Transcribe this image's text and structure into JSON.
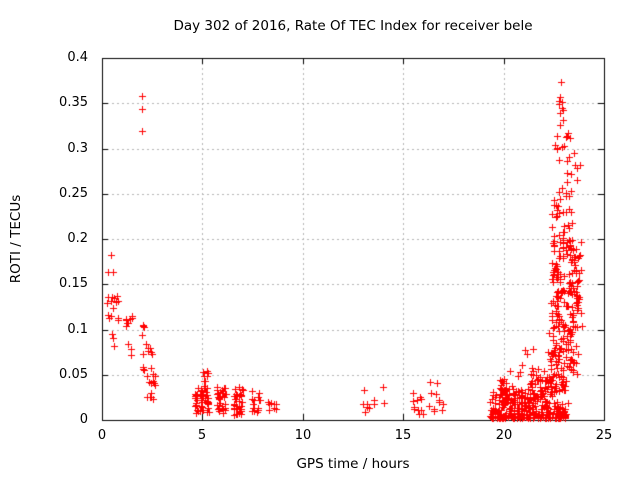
{
  "figure": {
    "background": "#ffffff",
    "border_color": "#000000"
  },
  "chart_data": {
    "type": "scatter",
    "title": "Day 302 of 2016, Rate Of TEC Index for receiver bele",
    "xlabel": "GPS time / hours",
    "ylabel": "ROTI / TECUs",
    "xlim": [
      0,
      25
    ],
    "ylim": [
      0,
      0.4
    ],
    "xticks": {
      "values": [
        0,
        5,
        10,
        15,
        20,
        25
      ],
      "labels": [
        "0",
        "5",
        "10",
        "15",
        "20",
        "25"
      ]
    },
    "yticks": {
      "values": [
        0,
        0.05,
        0.1,
        0.15,
        0.2,
        0.25,
        0.3,
        0.35,
        0.4
      ],
      "labels": [
        "0",
        "0.05",
        "0.1",
        "0.15",
        "0.2",
        "0.25",
        "0.3",
        "0.35",
        "0.4"
      ]
    },
    "grid": true,
    "grid_color": "#b4b4b4",
    "legend": "none",
    "series_name": "ROTI",
    "marker": {
      "shape": "plus",
      "color": "#ff0000",
      "size": 7
    },
    "clusters": [
      {
        "x0": 0.25,
        "x1": 0.85,
        "y0": 0.108,
        "y1": 0.138,
        "n": 14
      },
      {
        "x0": 1.1,
        "x1": 1.55,
        "y0": 0.1,
        "y1": 0.12,
        "n": 9,
        "cols": 2
      },
      {
        "x0": 1.88,
        "x1": 2.12,
        "y0": 0.085,
        "y1": 0.108,
        "n": 4
      },
      {
        "x0": 2.0,
        "x1": 2.55,
        "y0": 0.066,
        "y1": 0.084,
        "n": 7
      },
      {
        "x0": 2.05,
        "x1": 2.45,
        "y0": 0.05,
        "y1": 0.066,
        "n": 4
      },
      {
        "x0": 2.15,
        "x1": 2.62,
        "y0": 0.036,
        "y1": 0.052,
        "n": 8
      },
      {
        "x0": 2.2,
        "x1": 2.62,
        "y0": 0.023,
        "y1": 0.036,
        "n": 6
      },
      {
        "x0": 4.55,
        "x1": 5.35,
        "y0": 0.008,
        "y1": 0.036,
        "n": 44,
        "cols": 3
      },
      {
        "x0": 5.0,
        "x1": 5.35,
        "y0": 0.034,
        "y1": 0.056,
        "n": 9,
        "cols": 2
      },
      {
        "x0": 5.65,
        "x1": 6.2,
        "y0": 0.007,
        "y1": 0.037,
        "n": 34,
        "cols": 2
      },
      {
        "x0": 6.5,
        "x1": 7.05,
        "y0": 0.005,
        "y1": 0.037,
        "n": 34,
        "cols": 2
      },
      {
        "x0": 7.4,
        "x1": 7.95,
        "y0": 0.009,
        "y1": 0.036,
        "n": 15,
        "cols": 2
      },
      {
        "x0": 8.2,
        "x1": 8.75,
        "y0": 0.009,
        "y1": 0.023,
        "n": 9,
        "cols": 2
      },
      {
        "x0": 12.9,
        "x1": 13.6,
        "y0": 0.009,
        "y1": 0.022,
        "n": 6
      },
      {
        "x0": 15.4,
        "x1": 16.0,
        "y0": 0.006,
        "y1": 0.026,
        "n": 10
      },
      {
        "x0": 16.3,
        "x1": 17.0,
        "y0": 0.007,
        "y1": 0.022,
        "n": 7
      },
      {
        "x0": 19.3,
        "x1": 23.2,
        "y0": 0.002,
        "y1": 0.02,
        "n": 210,
        "bias": "low"
      },
      {
        "x0": 19.4,
        "x1": 22.4,
        "y0": 0.018,
        "y1": 0.034,
        "n": 95
      },
      {
        "x0": 19.8,
        "x1": 20.5,
        "y0": 0.032,
        "y1": 0.046,
        "n": 18
      },
      {
        "x0": 21.3,
        "x1": 22.2,
        "y0": 0.032,
        "y1": 0.05,
        "n": 24
      },
      {
        "x0": 22.2,
        "x1": 23.2,
        "y0": 0.03,
        "y1": 0.052,
        "n": 30
      },
      {
        "x0": 20.2,
        "x1": 22.2,
        "y0": 0.048,
        "y1": 0.058,
        "n": 8
      },
      {
        "x0": 22.2,
        "x1": 23.7,
        "y0": 0.05,
        "y1": 0.1,
        "n": 70
      },
      {
        "x0": 22.35,
        "x1": 23.9,
        "y0": 0.1,
        "y1": 0.2,
        "n": 155
      },
      {
        "x0": 22.3,
        "x1": 23.4,
        "y0": 0.2,
        "y1": 0.265,
        "n": 32
      },
      {
        "x0": 22.55,
        "x1": 23.8,
        "y0": 0.265,
        "y1": 0.325,
        "n": 18
      },
      {
        "x0": 22.7,
        "x1": 23.1,
        "y0": 0.325,
        "y1": 0.355,
        "n": 5
      }
    ],
    "outlier_points": [
      [
        0.45,
        0.182
      ],
      [
        0.3,
        0.164
      ],
      [
        0.55,
        0.163
      ],
      [
        0.5,
        0.095
      ],
      [
        0.55,
        0.091
      ],
      [
        0.62,
        0.082
      ],
      [
        1.3,
        0.084
      ],
      [
        1.45,
        0.079
      ],
      [
        1.42,
        0.072
      ],
      [
        1.98,
        0.358
      ],
      [
        2.0,
        0.344
      ],
      [
        1.97,
        0.319
      ],
      [
        13.05,
        0.033
      ],
      [
        13.55,
        0.022
      ],
      [
        14.0,
        0.037
      ],
      [
        14.05,
        0.019
      ],
      [
        15.5,
        0.03
      ],
      [
        16.35,
        0.042
      ],
      [
        16.7,
        0.041
      ],
      [
        16.4,
        0.03
      ],
      [
        16.62,
        0.029
      ],
      [
        20.9,
        0.061
      ],
      [
        21.05,
        0.077
      ],
      [
        21.15,
        0.073
      ],
      [
        21.45,
        0.078
      ],
      [
        22.85,
        0.374
      ],
      [
        22.8,
        0.357
      ],
      [
        22.9,
        0.345
      ],
      [
        22.82,
        0.339
      ],
      [
        22.95,
        0.332
      ],
      [
        23.2,
        0.317
      ],
      [
        23.3,
        0.312
      ]
    ]
  }
}
